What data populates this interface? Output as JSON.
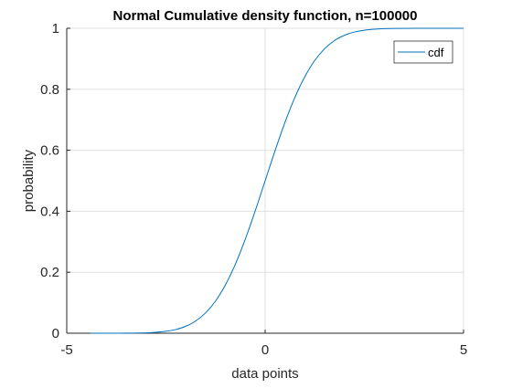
{
  "chart_data": {
    "type": "line",
    "title": "Normal Cumulative density function, n=100000",
    "xlabel": "data points",
    "ylabel": "probability",
    "xlim": [
      -5,
      5
    ],
    "ylim": [
      0,
      1
    ],
    "x_ticks": [
      -5,
      0,
      5
    ],
    "y_ticks": [
      0,
      0.2,
      0.4,
      0.6,
      0.8,
      1
    ],
    "x_tick_labels": [
      "-5",
      "0",
      "5"
    ],
    "y_tick_labels": [
      "0",
      "0.2",
      "0.4",
      "0.6",
      "0.8",
      "1"
    ],
    "grid": true,
    "legend_position": "top-right",
    "series": [
      {
        "name": "cdf",
        "color": "#0072bd",
        "x": [
          -4.4,
          -4.0,
          -3.5,
          -3.0,
          -2.75,
          -2.5,
          -2.25,
          -2.0,
          -1.75,
          -1.5,
          -1.25,
          -1.0,
          -0.75,
          -0.5,
          -0.25,
          0.0,
          0.25,
          0.5,
          0.75,
          1.0,
          1.25,
          1.5,
          1.75,
          2.0,
          2.25,
          2.5,
          2.75,
          3.0,
          3.5,
          4.0,
          4.5,
          5.0
        ],
        "y": [
          0.0,
          0.0,
          0.0002,
          0.0013,
          0.003,
          0.0062,
          0.0122,
          0.0228,
          0.0401,
          0.0668,
          0.1056,
          0.1587,
          0.2266,
          0.3085,
          0.4013,
          0.5,
          0.5987,
          0.6915,
          0.7734,
          0.8413,
          0.8944,
          0.9332,
          0.9599,
          0.9772,
          0.9878,
          0.9938,
          0.997,
          0.9987,
          0.9998,
          1.0,
          1.0,
          1.0
        ]
      }
    ]
  }
}
